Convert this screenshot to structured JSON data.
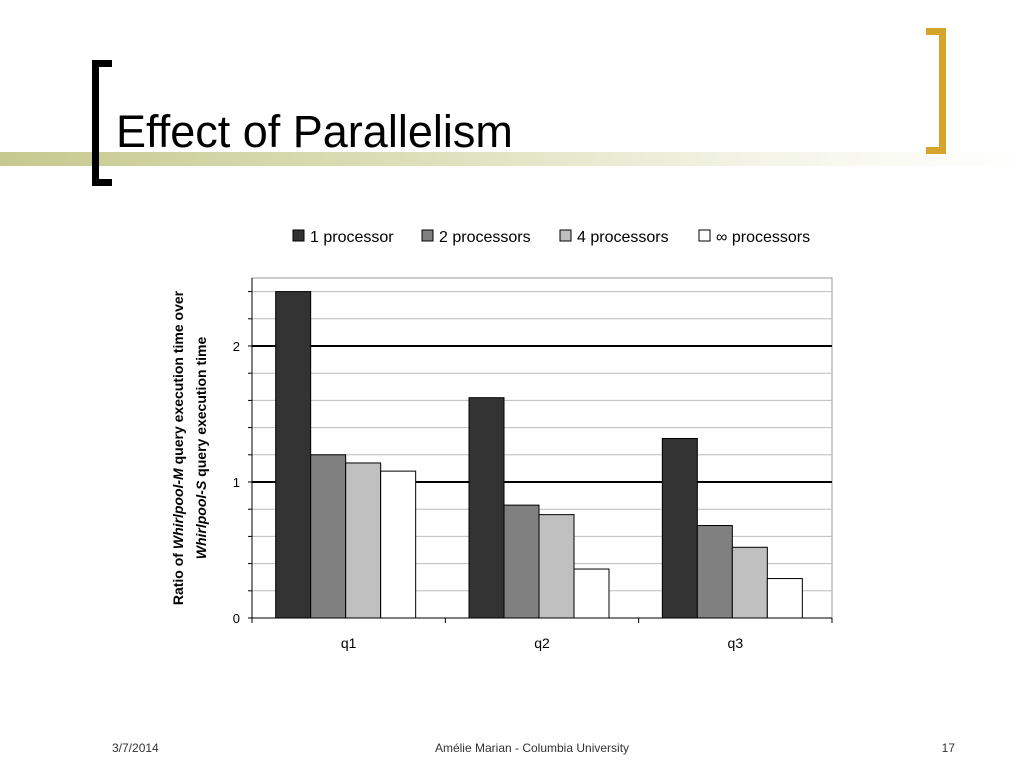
{
  "slide": {
    "title": "Effect of Parallelism",
    "footer_date": "3/7/2014",
    "footer_center": "Amélie Marian - Columbia University",
    "page_number": "17"
  },
  "colors": {
    "accent_bar": "#c6c98f",
    "bracket_left": "#000000",
    "bracket_right": "#d4a52a"
  },
  "chart_data": {
    "type": "bar",
    "categories": [
      "q1",
      "q2",
      "q3"
    ],
    "series": [
      {
        "name": "1 processor",
        "color": "#333333",
        "values": [
          2.4,
          1.62,
          1.32
        ]
      },
      {
        "name": "2 processors",
        "color": "#808080",
        "values": [
          1.2,
          0.83,
          0.68
        ]
      },
      {
        "name": "4 processors",
        "color": "#c0c0c0",
        "values": [
          1.14,
          0.76,
          0.52
        ]
      },
      {
        "name": "∞ processors",
        "color": "#ffffff",
        "values": [
          1.08,
          0.36,
          0.29
        ]
      }
    ],
    "ylabel_parts": [
      {
        "text": "Ratio of ",
        "italic": false
      },
      {
        "text": "Whirlpool-M",
        "italic": true
      },
      {
        "text": " query execution time over",
        "italic": false
      }
    ],
    "ylabel_parts_line2": [
      {
        "text": "Whirlpool-S",
        "italic": true
      },
      {
        "text": " query execution time",
        "italic": false
      }
    ],
    "ylim": [
      0,
      2.5
    ],
    "yticks": [
      0,
      1,
      2
    ],
    "grid": true,
    "major_lines_at": [
      1,
      2
    ],
    "legend_position": "top"
  }
}
